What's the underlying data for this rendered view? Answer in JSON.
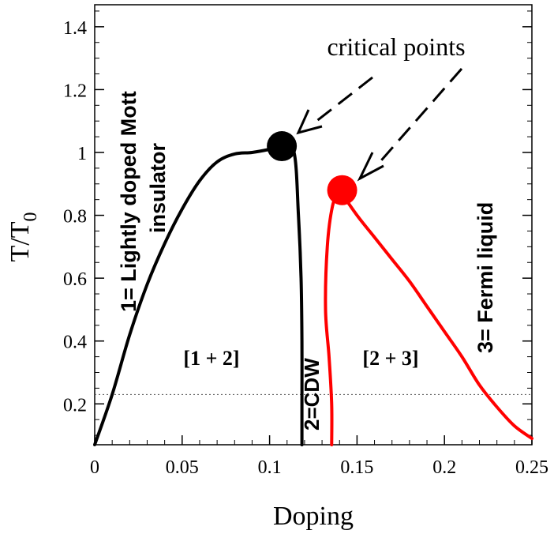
{
  "chart_data": {
    "type": "line",
    "xlabel": "Doping",
    "ylabel": "T/T",
    "ylabel_subscript": "0",
    "xlim": [
      0,
      0.25
    ],
    "ylim": [
      0.07,
      1.47
    ],
    "grid": false,
    "xticks": [
      0,
      0.05,
      0.1,
      0.15,
      0.2,
      0.25
    ],
    "xtick_labels": [
      "0",
      "0.05",
      "0.1",
      "0.15",
      "0.2",
      "0.25"
    ],
    "yticks": [
      0.2,
      0.4,
      0.6,
      0.8,
      1.0,
      1.2,
      1.4
    ],
    "ytick_labels": [
      "0.2",
      "0.4",
      "0.6",
      "0.8",
      "1",
      "1.2",
      "1.4"
    ],
    "reference_line": {
      "y": 0.23,
      "style": "dotted"
    },
    "series": [
      {
        "color": "#000000",
        "x": [
          0.0,
          0.01,
          0.02,
          0.03,
          0.04,
          0.05,
          0.06,
          0.07,
          0.08,
          0.09,
          0.1,
          0.107
        ],
        "y": [
          0.07,
          0.23,
          0.42,
          0.58,
          0.71,
          0.82,
          0.91,
          0.97,
          0.995,
          1.0,
          1.01,
          1.02
        ]
      },
      {
        "color": "#000000",
        "x": [
          0.107,
          0.114,
          0.1165,
          0.118,
          0.1185,
          0.1185,
          0.1185
        ],
        "y": [
          1.02,
          1.0,
          0.8,
          0.6,
          0.4,
          0.2,
          0.07
        ]
      },
      {
        "color": "#ff0000",
        "x": [
          0.14,
          0.136,
          0.133,
          0.132,
          0.134,
          0.1355,
          0.1355
        ],
        "y": [
          0.88,
          0.83,
          0.7,
          0.5,
          0.35,
          0.2,
          0.07
        ]
      },
      {
        "color": "#ff0000",
        "x": [
          0.14,
          0.15,
          0.16,
          0.17,
          0.18,
          0.19,
          0.2,
          0.21,
          0.22,
          0.23,
          0.24,
          0.25
        ],
        "y": [
          0.88,
          0.8,
          0.73,
          0.66,
          0.59,
          0.51,
          0.43,
          0.35,
          0.26,
          0.19,
          0.13,
          0.09
        ]
      }
    ],
    "points": [
      {
        "x": 0.107,
        "y": 1.02,
        "color": "#000000"
      },
      {
        "x": 0.1415,
        "y": 0.88,
        "color": "#ff0000"
      }
    ],
    "annotations": {
      "critical_points": "critical points",
      "region_left": "[1 + 2]",
      "region_right": "[2 + 3]",
      "phase_1_line1": "1= Lightly doped Mott",
      "phase_1_line2": "insulator",
      "phase_2": "2=CDW",
      "phase_3": "3= Fermi liquid"
    }
  }
}
